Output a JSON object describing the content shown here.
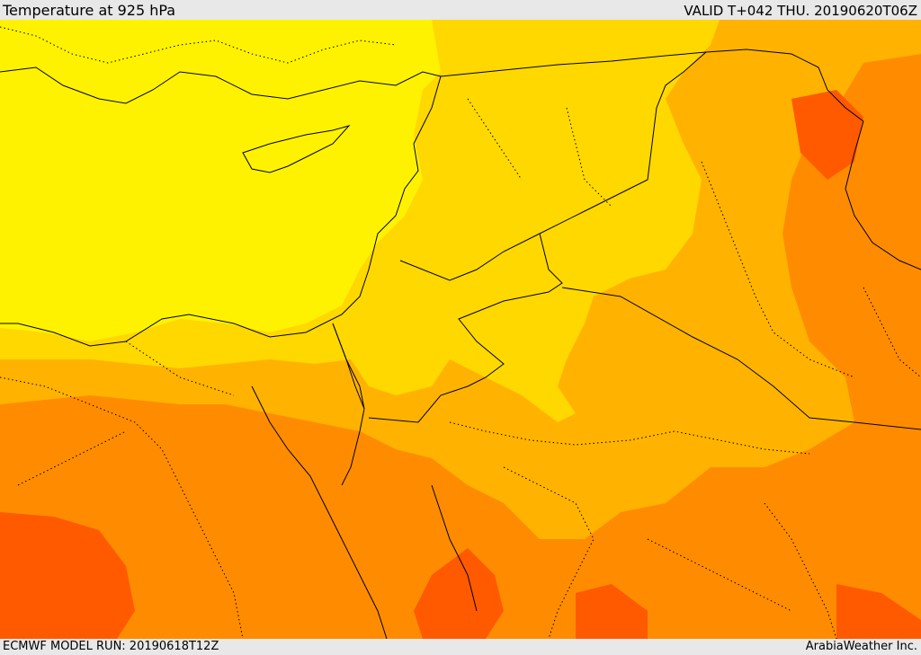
{
  "header": {
    "title": "Temperature at 925 hPa",
    "valid": "VALID T+042 THU. 20190620T06Z"
  },
  "footer": {
    "model_run": "ECMWF MODEL RUN: 20190618T12Z",
    "credit": "ArabiaWeather Inc."
  },
  "colors": {
    "band1": "#fff200",
    "band2": "#ffd800",
    "band3": "#ffb300",
    "band4": "#ff8c00",
    "band5": "#ff5a00",
    "frame": "#e8e8e8",
    "boundary": "#000000"
  }
}
